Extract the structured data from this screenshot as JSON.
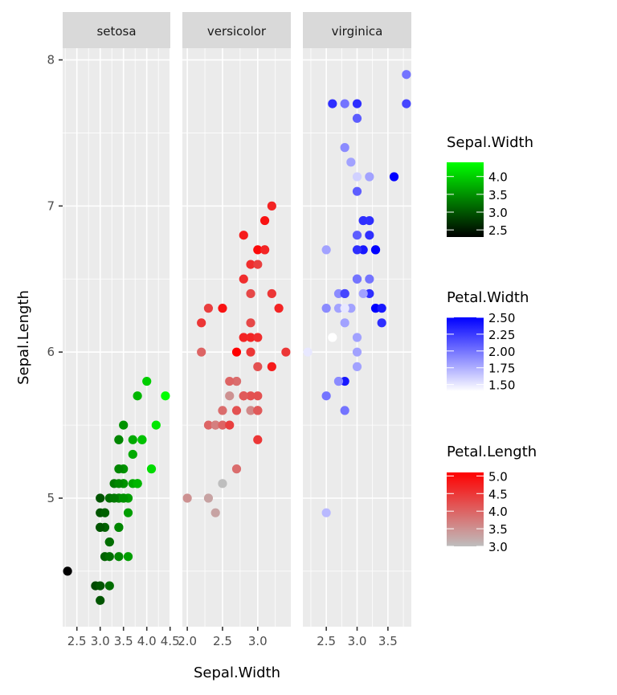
{
  "chart_data": {
    "type": "scatter",
    "title": "",
    "xlabel": "Sepal.Width",
    "ylabel": "Sepal.Length",
    "grid": true,
    "legend_position": "right",
    "facet_by": "Species",
    "facet_scales": "free_x",
    "ylim": [
      4.12,
      8.08
    ],
    "y_ticks": [
      5,
      6,
      7,
      8
    ],
    "facets": [
      {
        "name": "setosa",
        "xlim": [
          2.195,
          4.505
        ],
        "x_ticks": [
          2.5,
          3.0,
          3.5,
          4.0,
          4.5
        ],
        "x_tick_labels": [
          "2.5",
          "3.0",
          "3.5",
          "4.0",
          "4.5"
        ],
        "color_by": "Sepal.Width",
        "color_low": "#000000",
        "color_high": "#00FF00",
        "color_range": [
          2.3,
          4.4
        ],
        "points": [
          [
            3.5,
            5.1,
            3.5
          ],
          [
            3.0,
            4.9,
            3.0
          ],
          [
            3.2,
            4.7,
            3.2
          ],
          [
            3.1,
            4.6,
            3.1
          ],
          [
            3.6,
            5.0,
            3.6
          ],
          [
            3.9,
            5.4,
            3.9
          ],
          [
            3.4,
            4.6,
            3.4
          ],
          [
            3.4,
            5.0,
            3.4
          ],
          [
            2.9,
            4.4,
            2.9
          ],
          [
            3.1,
            4.9,
            3.1
          ],
          [
            3.7,
            5.4,
            3.7
          ],
          [
            3.4,
            4.8,
            3.4
          ],
          [
            3.0,
            4.8,
            3.0
          ],
          [
            3.0,
            4.3,
            3.0
          ],
          [
            4.0,
            5.8,
            4.0
          ],
          [
            4.4,
            5.7,
            4.4
          ],
          [
            3.9,
            5.4,
            3.9
          ],
          [
            3.5,
            5.1,
            3.5
          ],
          [
            3.8,
            5.7,
            3.8
          ],
          [
            3.8,
            5.1,
            3.8
          ],
          [
            3.4,
            5.4,
            3.4
          ],
          [
            3.7,
            5.1,
            3.7
          ],
          [
            3.6,
            4.6,
            3.6
          ],
          [
            3.3,
            5.1,
            3.3
          ],
          [
            3.4,
            4.8,
            3.4
          ],
          [
            3.0,
            5.0,
            3.0
          ],
          [
            3.4,
            5.0,
            3.4
          ],
          [
            3.5,
            5.2,
            3.5
          ],
          [
            3.4,
            5.2,
            3.4
          ],
          [
            3.2,
            4.7,
            3.2
          ],
          [
            3.1,
            4.8,
            3.1
          ],
          [
            3.4,
            5.4,
            3.4
          ],
          [
            4.1,
            5.2,
            4.1
          ],
          [
            4.2,
            5.5,
            4.2
          ],
          [
            3.1,
            4.9,
            3.1
          ],
          [
            3.2,
            5.0,
            3.2
          ],
          [
            3.5,
            5.5,
            3.5
          ],
          [
            3.6,
            4.9,
            3.6
          ],
          [
            3.0,
            4.4,
            3.0
          ],
          [
            3.4,
            5.1,
            3.4
          ],
          [
            3.5,
            5.0,
            3.5
          ],
          [
            2.3,
            4.5,
            2.3
          ],
          [
            3.2,
            4.4,
            3.2
          ],
          [
            3.5,
            5.0,
            3.5
          ],
          [
            3.8,
            5.1,
            3.8
          ],
          [
            3.0,
            4.8,
            3.0
          ],
          [
            3.8,
            5.1,
            3.8
          ],
          [
            3.2,
            4.6,
            3.2
          ],
          [
            3.7,
            5.3,
            3.7
          ],
          [
            3.3,
            5.0,
            3.3
          ]
        ]
      },
      {
        "name": "versicolor",
        "xlim": [
          1.93,
          3.47
        ],
        "x_ticks": [
          2.0,
          2.5,
          3.0
        ],
        "x_tick_labels": [
          "2.0",
          "2.5",
          "3.0"
        ],
        "color_by": "Petal.Length",
        "color_low": "#BEBEBE",
        "color_high": "#FF0000",
        "color_range": [
          3.0,
          5.1
        ],
        "points": [
          [
            3.2,
            7.0,
            4.7
          ],
          [
            3.2,
            6.4,
            4.5
          ],
          [
            3.1,
            6.9,
            4.9
          ],
          [
            2.3,
            5.5,
            4.0
          ],
          [
            2.8,
            6.5,
            4.6
          ],
          [
            2.8,
            5.7,
            4.5
          ],
          [
            3.3,
            6.3,
            4.7
          ],
          [
            2.4,
            4.9,
            3.3
          ],
          [
            2.9,
            6.6,
            4.6
          ],
          [
            2.7,
            5.2,
            3.9
          ],
          [
            2.0,
            5.0,
            3.5
          ],
          [
            3.0,
            5.9,
            4.2
          ],
          [
            2.2,
            6.0,
            4.0
          ],
          [
            2.9,
            6.1,
            4.7
          ],
          [
            2.9,
            5.6,
            3.6
          ],
          [
            3.1,
            6.7,
            4.4
          ],
          [
            3.0,
            5.6,
            4.5
          ],
          [
            2.7,
            5.8,
            4.1
          ],
          [
            2.2,
            6.2,
            4.5
          ],
          [
            2.5,
            5.6,
            3.9
          ],
          [
            3.2,
            5.9,
            4.8
          ],
          [
            2.8,
            6.1,
            4.0
          ],
          [
            2.5,
            6.3,
            4.9
          ],
          [
            2.8,
            6.1,
            4.7
          ],
          [
            2.9,
            6.4,
            4.3
          ],
          [
            3.0,
            6.6,
            4.4
          ],
          [
            2.8,
            6.8,
            4.8
          ],
          [
            3.0,
            6.7,
            5.0
          ],
          [
            2.9,
            6.0,
            4.5
          ],
          [
            2.6,
            5.7,
            3.5
          ],
          [
            2.4,
            5.5,
            3.8
          ],
          [
            2.4,
            5.5,
            3.7
          ],
          [
            2.7,
            5.8,
            3.9
          ],
          [
            2.7,
            6.0,
            5.1
          ],
          [
            3.0,
            5.4,
            4.5
          ],
          [
            3.4,
            6.0,
            4.5
          ],
          [
            3.1,
            6.7,
            4.7
          ],
          [
            2.3,
            6.3,
            4.4
          ],
          [
            3.0,
            5.6,
            4.1
          ],
          [
            2.5,
            5.5,
            4.0
          ],
          [
            2.6,
            5.5,
            4.4
          ],
          [
            3.0,
            6.1,
            4.6
          ],
          [
            2.6,
            5.8,
            4.0
          ],
          [
            2.3,
            5.0,
            3.3
          ],
          [
            2.7,
            5.6,
            4.2
          ],
          [
            3.0,
            5.7,
            4.2
          ],
          [
            2.9,
            5.7,
            4.2
          ],
          [
            2.9,
            6.2,
            4.3
          ],
          [
            2.5,
            5.1,
            3.0
          ],
          [
            2.8,
            5.7,
            4.1
          ]
        ]
      },
      {
        "name": "virginica",
        "xlim": [
          2.12,
          3.88
        ],
        "x_ticks": [
          2.5,
          3.0,
          3.5
        ],
        "x_tick_labels": [
          "2.5",
          "3.0",
          "3.5"
        ],
        "color_by": "Petal.Width",
        "color_low": "#FFFFFF",
        "color_high": "#0000FF",
        "color_range": [
          1.4,
          2.5
        ],
        "points": [
          [
            3.3,
            6.3,
            2.5
          ],
          [
            2.7,
            5.8,
            1.9
          ],
          [
            3.0,
            7.1,
            2.1
          ],
          [
            2.9,
            6.3,
            1.8
          ],
          [
            3.0,
            6.5,
            2.2
          ],
          [
            3.0,
            7.6,
            2.1
          ],
          [
            2.5,
            4.9,
            1.7
          ],
          [
            2.9,
            7.3,
            1.8
          ],
          [
            2.5,
            6.7,
            1.8
          ],
          [
            3.6,
            7.2,
            2.5
          ],
          [
            3.2,
            6.5,
            2.0
          ],
          [
            2.7,
            6.4,
            1.9
          ],
          [
            3.0,
            6.8,
            2.1
          ],
          [
            2.5,
            5.7,
            2.0
          ],
          [
            2.8,
            5.8,
            2.4
          ],
          [
            3.2,
            6.4,
            2.3
          ],
          [
            3.0,
            6.5,
            1.8
          ],
          [
            3.8,
            7.7,
            2.2
          ],
          [
            2.6,
            7.7,
            2.3
          ],
          [
            2.2,
            6.0,
            1.5
          ],
          [
            3.2,
            6.9,
            2.3
          ],
          [
            2.8,
            5.6,
            2.0
          ],
          [
            2.8,
            7.7,
            2.0
          ],
          [
            2.7,
            6.3,
            1.8
          ],
          [
            3.3,
            6.7,
            2.1
          ],
          [
            3.2,
            7.2,
            1.8
          ],
          [
            2.8,
            6.2,
            1.8
          ],
          [
            3.0,
            6.1,
            1.8
          ],
          [
            2.8,
            6.4,
            2.1
          ],
          [
            3.0,
            7.2,
            1.6
          ],
          [
            2.8,
            7.4,
            1.9
          ],
          [
            3.8,
            7.9,
            2.0
          ],
          [
            2.8,
            6.4,
            2.2
          ],
          [
            2.8,
            6.3,
            1.5
          ],
          [
            2.6,
            6.1,
            1.4
          ],
          [
            3.0,
            7.7,
            2.3
          ],
          [
            3.4,
            6.3,
            2.4
          ],
          [
            3.1,
            6.4,
            1.8
          ],
          [
            3.0,
            6.0,
            1.8
          ],
          [
            3.1,
            6.9,
            2.1
          ],
          [
            3.1,
            6.7,
            2.4
          ],
          [
            3.1,
            6.9,
            2.3
          ],
          [
            2.7,
            5.8,
            1.9
          ],
          [
            3.2,
            6.8,
            2.3
          ],
          [
            3.3,
            6.7,
            2.5
          ],
          [
            3.0,
            6.7,
            2.3
          ],
          [
            2.5,
            6.3,
            1.9
          ],
          [
            3.0,
            6.5,
            2.0
          ],
          [
            3.4,
            6.2,
            2.3
          ],
          [
            3.0,
            5.9,
            1.8
          ]
        ]
      }
    ],
    "point_columns": [
      "Sepal.Width",
      "Sepal.Length",
      "color_value"
    ],
    "legends": [
      {
        "title": "Sepal.Width",
        "low": "#000000",
        "high": "#00FF00",
        "range": [
          2.3,
          4.4
        ],
        "breaks": [
          2.5,
          3.0,
          3.5,
          4.0
        ],
        "labels": [
          "2.5",
          "3.0",
          "3.5",
          "4.0"
        ]
      },
      {
        "title": "Petal.Width",
        "low": "#FFFFFF",
        "high": "#0000FF",
        "range": [
          1.4,
          2.5
        ],
        "breaks": [
          1.5,
          1.75,
          2.0,
          2.25,
          2.5
        ],
        "labels": [
          "1.50",
          "1.75",
          "2.00",
          "2.25",
          "2.50"
        ]
      },
      {
        "title": "Petal.Length",
        "low": "#BEBEBE",
        "high": "#FF0000",
        "range": [
          3.0,
          5.1
        ],
        "breaks": [
          3.0,
          3.5,
          4.0,
          4.5,
          5.0
        ],
        "labels": [
          "3.0",
          "3.5",
          "4.0",
          "4.5",
          "5.0"
        ]
      }
    ],
    "colors": {
      "panel_background": "#EBEBEB",
      "strip_background": "#D9D9D9",
      "grid": "#FFFFFF"
    }
  }
}
